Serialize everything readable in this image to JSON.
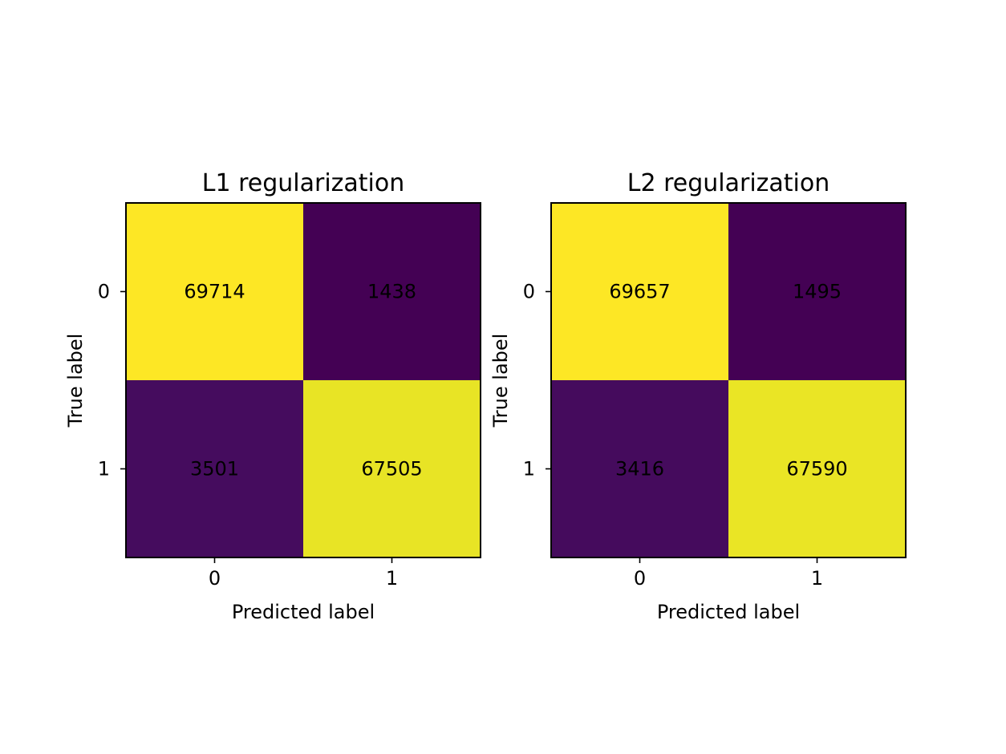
{
  "chart_data": [
    {
      "type": "heatmap",
      "title": "L1 regularization",
      "xlabel": "Predicted label",
      "ylabel": "True label",
      "x_categories": [
        "0",
        "1"
      ],
      "y_categories": [
        "0",
        "1"
      ],
      "values": [
        [
          69714,
          1438
        ],
        [
          3501,
          67505
        ]
      ],
      "colormap": "viridis",
      "grid": false,
      "colorbar": false
    },
    {
      "type": "heatmap",
      "title": "L2 regularization",
      "xlabel": "Predicted label",
      "ylabel": "True label",
      "x_categories": [
        "0",
        "1"
      ],
      "y_categories": [
        "0",
        "1"
      ],
      "values": [
        [
          69657,
          1495
        ],
        [
          3416,
          67590
        ]
      ],
      "colormap": "viridis",
      "grid": false,
      "colorbar": false
    }
  ],
  "colors": {
    "viridis_low": "#440154",
    "viridis_high": "#fde725",
    "text_on_dark": "#fde725",
    "text_on_light": "#440154",
    "axis": "#000000",
    "background": "#ffffff"
  }
}
